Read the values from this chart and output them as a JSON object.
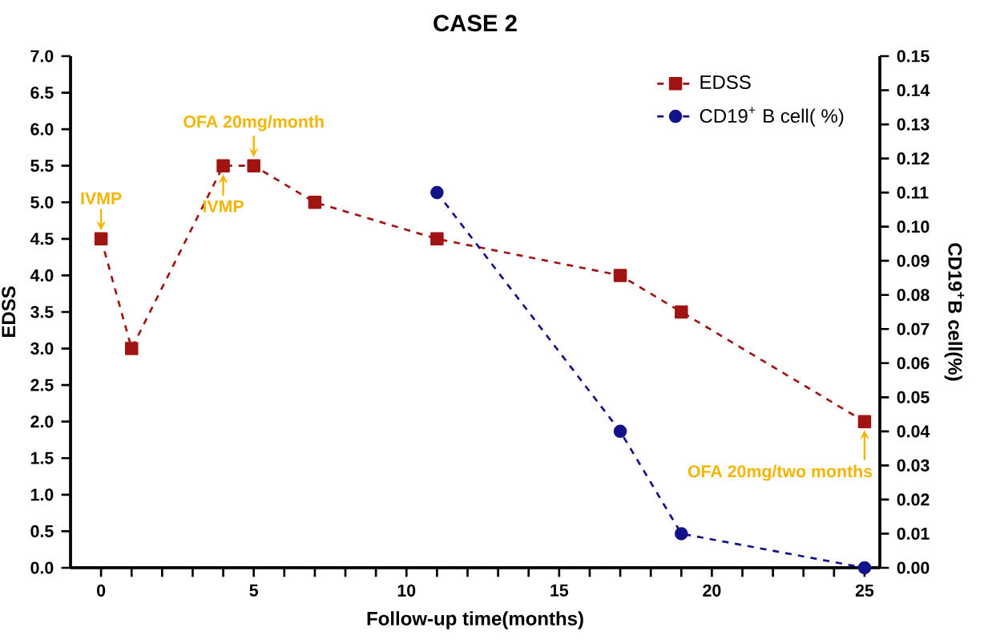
{
  "chart_data": {
    "type": "line",
    "title": "CASE 2",
    "xlabel": "Follow-up time(months)",
    "ylabel": "EDSS",
    "y2label": "CD19$^{+}$B cell(%)",
    "xlim": [
      -1,
      25.5
    ],
    "xticks": [
      0,
      {
        "value": 1,
        "label": null
      },
      {
        "value": 2,
        "label": null
      },
      {
        "value": 3,
        "label": null
      },
      {
        "value": 4,
        "label": null
      },
      5,
      {
        "value": 6,
        "label": null
      },
      {
        "value": 7,
        "label": null
      },
      {
        "value": 8,
        "label": null
      },
      {
        "value": 9,
        "label": null
      },
      10,
      {
        "value": 11,
        "label": null
      },
      {
        "value": 12,
        "label": null
      },
      {
        "value": 13,
        "label": null
      },
      {
        "value": 14,
        "label": null
      },
      15,
      {
        "value": 16,
        "label": null
      },
      {
        "value": 17,
        "label": null
      },
      {
        "value": 18,
        "label": null
      },
      {
        "value": 19,
        "label": null
      },
      20,
      {
        "value": 21,
        "label": null
      },
      {
        "value": 22,
        "label": null
      },
      {
        "value": 23,
        "label": null
      },
      {
        "value": 24,
        "label": null
      },
      25
    ],
    "ylim": [
      0,
      7
    ],
    "yticks": [
      {
        "value": 0,
        "label": "0.0"
      },
      0.5,
      {
        "value": 1,
        "label": "1.0"
      },
      1.5,
      {
        "value": 2,
        "label": "2.0"
      },
      2.5,
      {
        "value": 3,
        "label": "3.0"
      },
      3.5,
      {
        "value": 4,
        "label": "4.0"
      },
      4.5,
      {
        "value": 5,
        "label": "5.0"
      },
      5.5,
      {
        "value": 6,
        "label": "6.0"
      },
      6.5,
      {
        "value": 7,
        "label": "7.0"
      }
    ],
    "y2lim": [
      0,
      0.15
    ],
    "y2ticks": [
      {
        "value": 0,
        "label": "0.00"
      },
      {
        "value": 0.01,
        "label": "0.01"
      },
      {
        "value": 0.02,
        "label": "0.02"
      },
      {
        "value": 0.03,
        "label": "0.03"
      },
      {
        "value": 0.04,
        "label": "0.04"
      },
      {
        "value": 0.05,
        "label": "0.05"
      },
      {
        "value": 0.06,
        "label": "0.06"
      },
      {
        "value": 0.07,
        "label": "0.07"
      },
      {
        "value": 0.08,
        "label": "0.08"
      },
      {
        "value": 0.09,
        "label": "0.09"
      },
      {
        "value": 0.1,
        "label": "0.10"
      },
      {
        "value": 0.11,
        "label": "0.11"
      },
      {
        "value": 0.12,
        "label": "0.12"
      },
      {
        "value": 0.13,
        "label": "0.13"
      },
      {
        "value": 0.14,
        "label": "0.14"
      },
      {
        "value": 0.15,
        "label": "0.15"
      }
    ],
    "series": [
      {
        "name": "EDSS",
        "color": "#a01414",
        "x": [
          0,
          1,
          4,
          5,
          7,
          11,
          17,
          19,
          25
        ],
        "values": [
          4.5,
          3.0,
          5.5,
          5.5,
          5.0,
          4.5,
          4.0,
          3.5,
          2.0
        ],
        "marker": "square",
        "line_style": "dashed"
      },
      {
        "name": "CD19$^{+}$ B cell( %)",
        "color": "#12128a",
        "x": [
          11,
          17,
          19,
          25
        ],
        "values": [
          0.11,
          0.04,
          0.01,
          0.0
        ],
        "axis": "y2",
        "marker": "circle",
        "line_style": "dashed"
      }
    ],
    "annotations": [
      {
        "text": "IVMP",
        "x": 0,
        "y": 4.5
      },
      {
        "text": "IVMP",
        "x": 4,
        "y": 5.5
      },
      {
        "text": "OFA 20mg/month",
        "x": 5,
        "y": 5.5
      },
      {
        "text": "OFA 20mg/two months",
        "x": 25,
        "y": 2.0
      }
    ],
    "legend": "top right",
    "grid": false
  }
}
